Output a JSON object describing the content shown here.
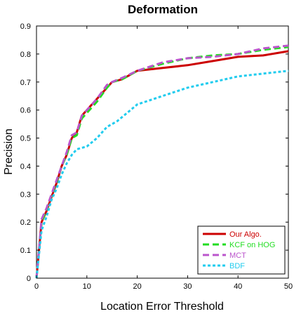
{
  "chart_data": {
    "type": "line",
    "title": "Deformation",
    "xlabel": "Location Error Threshold",
    "ylabel": "Precision",
    "xlim": [
      0,
      50
    ],
    "ylim": [
      0,
      0.9
    ],
    "xticks": [
      "0",
      "10",
      "20",
      "30",
      "40",
      "50"
    ],
    "yticks": [
      "0",
      "0.1",
      "0.2",
      "0.3",
      "0.4",
      "0.5",
      "0.6",
      "0.7",
      "0.8",
      "0.9"
    ],
    "grid": false,
    "legend_position": "bottom-right",
    "series": [
      {
        "name": "Our Algo.",
        "color": "#cc0000",
        "dash": "solid",
        "x": [
          0,
          1,
          2,
          3,
          4,
          5,
          6,
          7,
          8,
          9,
          10,
          12,
          14,
          15,
          17,
          20,
          25,
          30,
          35,
          40,
          45,
          50
        ],
        "y": [
          0,
          0.2,
          0.24,
          0.29,
          0.34,
          0.4,
          0.44,
          0.5,
          0.52,
          0.58,
          0.6,
          0.64,
          0.68,
          0.7,
          0.71,
          0.74,
          0.75,
          0.76,
          0.775,
          0.79,
          0.795,
          0.81
        ]
      },
      {
        "name": "KCF on HOG",
        "color": "#22dd22",
        "dash": "dash",
        "x": [
          0,
          1,
          2,
          3,
          4,
          5,
          6,
          7,
          8,
          9,
          10,
          12,
          14,
          15,
          17,
          20,
          25,
          30,
          35,
          40,
          45,
          50
        ],
        "y": [
          0,
          0.2,
          0.245,
          0.295,
          0.345,
          0.4,
          0.44,
          0.5,
          0.51,
          0.57,
          0.59,
          0.63,
          0.68,
          0.7,
          0.71,
          0.74,
          0.765,
          0.785,
          0.795,
          0.8,
          0.815,
          0.825
        ]
      },
      {
        "name": "MCT",
        "color": "#bb55cc",
        "dash": "dash",
        "x": [
          0,
          1,
          2,
          3,
          4,
          5,
          6,
          7,
          8,
          9,
          10,
          12,
          14,
          15,
          17,
          20,
          25,
          30,
          35,
          40,
          45,
          50
        ],
        "y": [
          0,
          0.21,
          0.25,
          0.3,
          0.35,
          0.4,
          0.45,
          0.51,
          0.52,
          0.58,
          0.6,
          0.64,
          0.69,
          0.7,
          0.715,
          0.74,
          0.77,
          0.785,
          0.79,
          0.8,
          0.82,
          0.83
        ]
      },
      {
        "name": "BDF",
        "color": "#22ccee",
        "dash": "dot",
        "x": [
          0,
          1,
          2,
          3,
          4,
          5,
          6,
          7,
          8,
          10,
          12,
          14,
          16,
          18,
          20,
          25,
          30,
          35,
          40,
          45,
          50
        ],
        "y": [
          0,
          0.17,
          0.22,
          0.28,
          0.32,
          0.37,
          0.41,
          0.44,
          0.46,
          0.47,
          0.5,
          0.54,
          0.56,
          0.59,
          0.62,
          0.65,
          0.68,
          0.7,
          0.72,
          0.73,
          0.74
        ]
      }
    ]
  }
}
